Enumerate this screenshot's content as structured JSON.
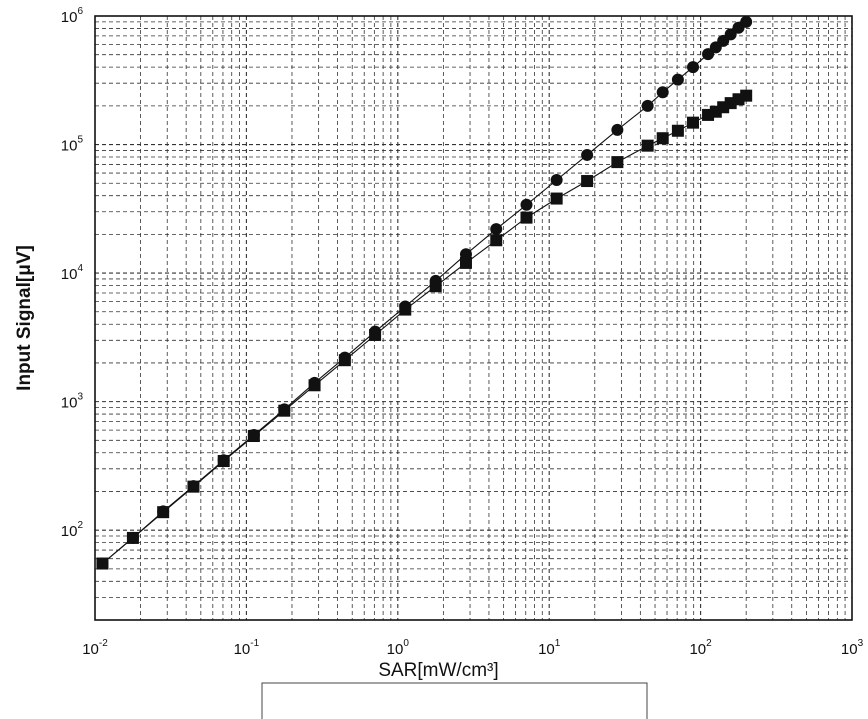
{
  "chart_data": {
    "type": "scatter",
    "title": "",
    "xlabel": "SAR[mW/cm³]",
    "ylabel": "Input Signal[μV]",
    "xscale": "log",
    "yscale": "log",
    "xlim": [
      0.01,
      1000
    ],
    "ylim": [
      20,
      1000000
    ],
    "grid": true,
    "grid_style": "dashed",
    "x_ticks": [
      {
        "base": "10",
        "exp": "-2",
        "value": 0.01
      },
      {
        "base": "10",
        "exp": "-1",
        "value": 0.1
      },
      {
        "base": "10",
        "exp": "0",
        "value": 1
      },
      {
        "base": "10",
        "exp": "1",
        "value": 10
      },
      {
        "base": "10",
        "exp": "2",
        "value": 100
      },
      {
        "base": "10",
        "exp": "3",
        "value": 1000
      }
    ],
    "y_ticks": [
      {
        "base": "10",
        "exp": "2",
        "value": 100
      },
      {
        "base": "10",
        "exp": "3",
        "value": 1000
      },
      {
        "base": "10",
        "exp": "4",
        "value": 10000
      },
      {
        "base": "10",
        "exp": "5",
        "value": 100000
      },
      {
        "base": "10",
        "exp": "6",
        "value": 1000000
      }
    ],
    "series": [
      {
        "marker": "circle",
        "color": "#111111",
        "x": [
          0.0112,
          0.0178,
          0.0282,
          0.0447,
          0.0708,
          0.112,
          0.178,
          0.282,
          0.447,
          0.708,
          1.12,
          1.78,
          2.82,
          4.47,
          7.08,
          11.2,
          17.8,
          28.2,
          44.7,
          56.2,
          70.8,
          89.1,
          112,
          126,
          141,
          158,
          178,
          200
        ],
        "y": [
          55,
          87,
          140,
          220,
          350,
          550,
          870,
          1400,
          2200,
          3500,
          5500,
          8700,
          14000,
          22000,
          34000,
          53000,
          83000,
          130000,
          200000,
          255000,
          320000,
          400000,
          505000,
          570000,
          640000,
          720000,
          810000,
          900000
        ]
      },
      {
        "marker": "square",
        "color": "#111111",
        "x": [
          0.0112,
          0.0178,
          0.0282,
          0.0447,
          0.0708,
          0.112,
          0.178,
          0.282,
          0.447,
          0.708,
          1.12,
          1.78,
          2.82,
          4.47,
          7.08,
          11.2,
          17.8,
          28.2,
          44.7,
          56.2,
          70.8,
          89.1,
          112,
          126,
          141,
          158,
          178,
          200
        ],
        "y": [
          55,
          87,
          138,
          218,
          345,
          540,
          850,
          1340,
          2100,
          3300,
          5200,
          7900,
          12000,
          18000,
          27000,
          38000,
          52000,
          73000,
          98000,
          112000,
          128000,
          148000,
          170000,
          180000,
          195000,
          210000,
          225000,
          240000
        ]
      }
    ]
  }
}
